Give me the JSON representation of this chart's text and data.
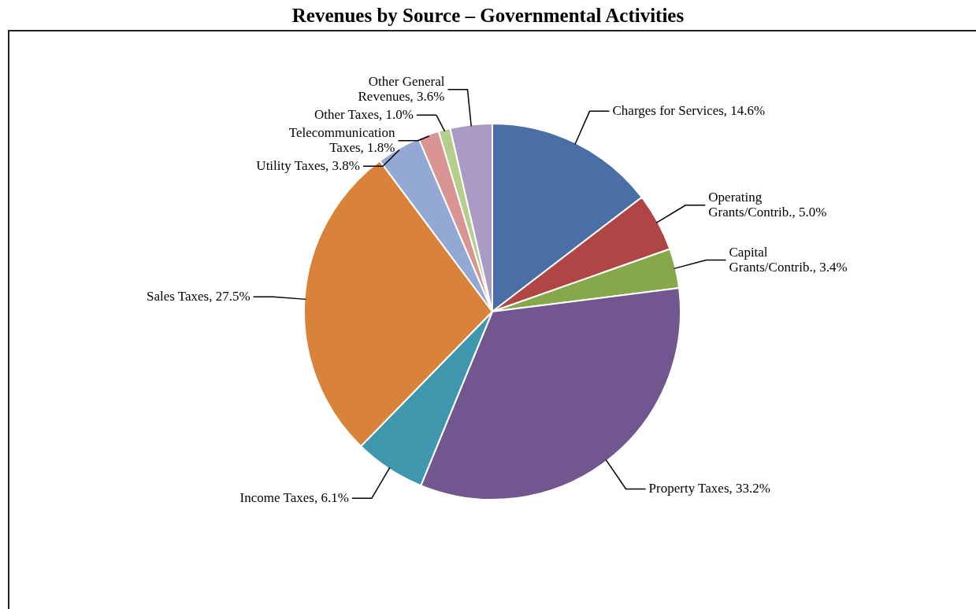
{
  "chart_data": {
    "type": "pie",
    "title": "Revenues by Source – Governmental Activities",
    "categories": [
      "Charges for Services",
      "Operating Grants/Contrib.",
      "Capital Grants/Contrib.",
      "Property Taxes",
      "Income Taxes",
      "Sales Taxes",
      "Utility Taxes",
      "Telecommunication Taxes",
      "Other Taxes",
      "Other General Revenues"
    ],
    "values": [
      14.6,
      5.0,
      3.4,
      33.2,
      6.1,
      27.5,
      3.8,
      1.8,
      1.0,
      3.6
    ],
    "value_labels": [
      "14.6%",
      "5.0%",
      "3.4%",
      "33.2%",
      "6.1%",
      "27.5%",
      "3.8%",
      "1.8%",
      "1.0%",
      "3.6%"
    ],
    "colors": [
      "#4a6fa5",
      "#b04545",
      "#86a84a",
      "#725690",
      "#3f97ae",
      "#d9823a",
      "#93a9d4",
      "#d99594",
      "#b5cf8a",
      "#a99bc4"
    ],
    "legend": false
  }
}
